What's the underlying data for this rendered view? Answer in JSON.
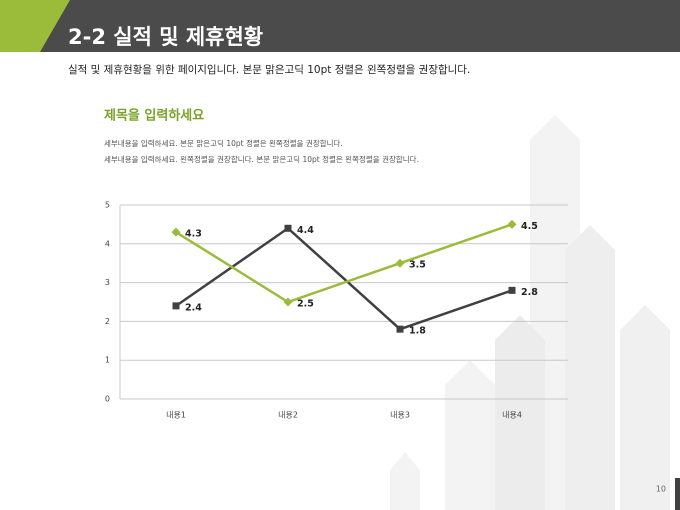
{
  "header": {
    "title": "2-2 실적 및 제휴현황",
    "subtitle": "실적 및 제휴현황을 위한 페이지입니다. 본문 맑은고딕 10pt 정렬은 왼쪽정렬을 권장합니다."
  },
  "page_number": "10",
  "chart_data": {
    "type": "line",
    "title": "제목을 입력하세요",
    "description": [
      "세부내용을 입력하세요. 본문 맑은고딕 10pt 정렬은 왼쪽정렬을 권장합니다.",
      "세부내용을 입력하세요. 왼쪽정렬을 권장합니다. 본문 맑은고딕 10pt 정렬은 왼쪽정렬을 권장합니다."
    ],
    "categories": [
      "내용1",
      "내용2",
      "내용3",
      "내용4"
    ],
    "series": [
      {
        "color": "#404040",
        "values": [
          2.4,
          4.4,
          1.8,
          2.8
        ],
        "marker": "square"
      },
      {
        "color": "#9bbb3b",
        "values": [
          4.3,
          2.5,
          3.5,
          4.5
        ],
        "marker": "diamond"
      }
    ],
    "ylim": [
      0,
      5
    ],
    "yticks": [
      0,
      1,
      2,
      3,
      4,
      5
    ],
    "grid": true
  }
}
